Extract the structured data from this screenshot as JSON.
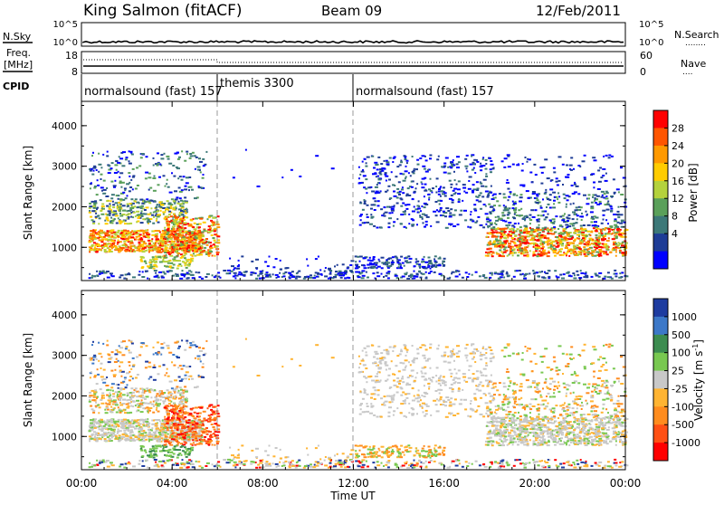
{
  "header": {
    "station": "King Salmon (fitACF)",
    "beam": "Beam 09",
    "date": "12/Feb/2011"
  },
  "summary_panel": {
    "nsky_label": "N.Sky",
    "nsearch_label": "N.Search",
    "nsearch_legend": "........",
    "freq_label_1": "Freq.",
    "freq_label_2": "[MHz]",
    "nave_label": "Nave",
    "nave_legend": "....",
    "cpid_label": "CPID",
    "noise_ticks_left": [
      "10^5",
      "10^0"
    ],
    "noise_ticks_right": [
      "10^5",
      "10^0"
    ],
    "freq_ticks": [
      "18",
      "8"
    ],
    "nave_ticks": [
      "60",
      "0"
    ]
  },
  "cpid_segments": [
    {
      "label": "normalsound (fast) 157",
      "start_h": 0,
      "end_h": 6
    },
    {
      "label": "themis 3300",
      "start_h": 6,
      "end_h": 12
    },
    {
      "label": "normalsound (fast) 157",
      "start_h": 12,
      "end_h": 24
    }
  ],
  "chart_data": [
    {
      "type": "heatmap",
      "title": "Power",
      "ylabel": "Slant Range [km]",
      "xlabel": "Time UT",
      "xlim": [
        0,
        24
      ],
      "ylim": [
        180,
        4600
      ],
      "yticks": [
        1000,
        2000,
        3000,
        4000
      ],
      "xticks": [
        "00:00",
        "04:00",
        "08:00",
        "12:00",
        "16:00",
        "20:00",
        "00:00"
      ],
      "colorbar": {
        "label": "Power [dB]",
        "ticks": [
          "28",
          "24",
          "20",
          "16",
          "12",
          "8",
          "4"
        ],
        "values": [
          28,
          24,
          20,
          16,
          12,
          8,
          4
        ],
        "colors": [
          "#ff0000",
          "#ff5500",
          "#ff9900",
          "#ffcc00",
          "#b4d23c",
          "#5aa05a",
          "#3c7878",
          "#1e3c96",
          "#0000ff"
        ]
      }
    },
    {
      "type": "heatmap",
      "title": "Velocity",
      "ylabel": "Slant Range [km]",
      "xlabel": "Time UT",
      "xlim": [
        0,
        24
      ],
      "ylim": [
        180,
        4600
      ],
      "yticks": [
        1000,
        2000,
        3000,
        4000
      ],
      "xticks": [
        "00:00",
        "04:00",
        "08:00",
        "12:00",
        "16:00",
        "20:00",
        "00:00"
      ],
      "colorbar": {
        "label_main": "Velocity",
        "label_unit": "[m s",
        "label_sup": "-1",
        "label_end": "]",
        "ticks": [
          "1000",
          "500",
          "100",
          "25",
          "-25",
          "-100",
          "-500",
          "-1000"
        ],
        "colors": [
          "#1e3ca0",
          "#3c78c8",
          "#3c8c50",
          "#78c850",
          "#c8c8c8",
          "#ffb432",
          "#ff8c1e",
          "#ff5014",
          "#ff0000"
        ]
      }
    }
  ]
}
